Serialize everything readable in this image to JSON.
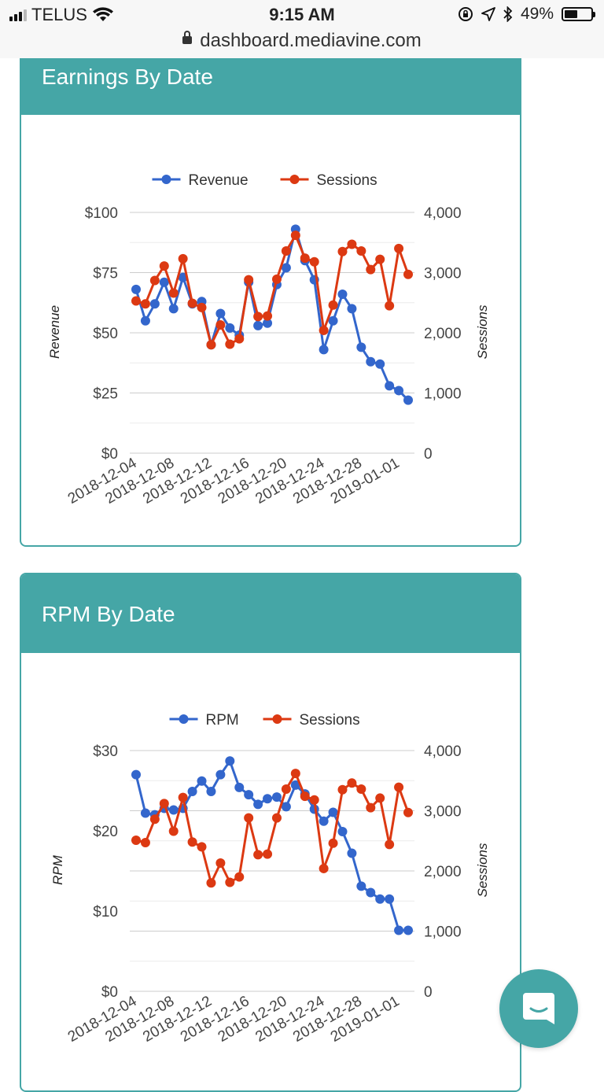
{
  "status_bar": {
    "carrier": "TELUS",
    "time": "9:15 AM",
    "battery": "49%",
    "battery_level": 0.49,
    "url": "dashboard.mediavine.com"
  },
  "colors": {
    "teal": "#45a6a6",
    "revenue": "#3366cc",
    "sessions": "#dc3912"
  },
  "icons": [
    "signal-icon",
    "wifi-icon",
    "orientation-lock-icon",
    "location-icon",
    "bluetooth-icon",
    "battery-icon",
    "lock-icon",
    "chat-icon"
  ],
  "cards": [
    {
      "title": "Earnings By Date"
    },
    {
      "title": "RPM By Date"
    }
  ],
  "chart_data": [
    {
      "type": "line",
      "title": "Earnings By Date",
      "dates": [
        "2018-12-04",
        "2018-12-05",
        "2018-12-06",
        "2018-12-07",
        "2018-12-08",
        "2018-12-09",
        "2018-12-10",
        "2018-12-11",
        "2018-12-12",
        "2018-12-13",
        "2018-12-14",
        "2018-12-15",
        "2018-12-16",
        "2018-12-17",
        "2018-12-18",
        "2018-12-19",
        "2018-12-20",
        "2018-12-21",
        "2018-12-22",
        "2018-12-23",
        "2018-12-24",
        "2018-12-25",
        "2018-12-26",
        "2018-12-27",
        "2018-12-28",
        "2018-12-29",
        "2018-12-30",
        "2018-12-31",
        "2019-01-01",
        "2019-01-02"
      ],
      "x_tick_labels": [
        "2018-12-04",
        "2018-12-08",
        "2018-12-12",
        "2018-12-16",
        "2018-12-20",
        "2018-12-24",
        "2018-12-28",
        "2019-01-01"
      ],
      "legend": [
        "Revenue",
        "Sessions"
      ],
      "left_axis": {
        "label": "Revenue",
        "ticks": [
          "$0",
          "$25",
          "$50",
          "$75",
          "$100"
        ],
        "range": [
          0,
          100
        ]
      },
      "right_axis": {
        "label": "Sessions",
        "ticks": [
          "0",
          "1,000",
          "2,000",
          "3,000",
          "4,000"
        ],
        "range": [
          0,
          4000
        ]
      },
      "series": [
        {
          "name": "Revenue",
          "axis": "left",
          "values": [
            68,
            55,
            62,
            71,
            60,
            73,
            62,
            63,
            45,
            58,
            52,
            49,
            71,
            53,
            54,
            70,
            77,
            93,
            80,
            72,
            43,
            55,
            66,
            60,
            44,
            38,
            37,
            28,
            26,
            22
          ]
        },
        {
          "name": "Sessions",
          "axis": "right",
          "values": [
            2530,
            2480,
            2870,
            3110,
            2660,
            3230,
            2490,
            2420,
            1800,
            2130,
            1810,
            1900,
            2880,
            2270,
            2280,
            2890,
            3360,
            3620,
            3240,
            3180,
            2040,
            2460,
            3350,
            3470,
            3360,
            3050,
            3220,
            2450,
            3400,
            2970
          ]
        }
      ]
    },
    {
      "type": "line",
      "title": "RPM By Date",
      "dates": [
        "2018-12-04",
        "2018-12-05",
        "2018-12-06",
        "2018-12-07",
        "2018-12-08",
        "2018-12-09",
        "2018-12-10",
        "2018-12-11",
        "2018-12-12",
        "2018-12-13",
        "2018-12-14",
        "2018-12-15",
        "2018-12-16",
        "2018-12-17",
        "2018-12-18",
        "2018-12-19",
        "2018-12-20",
        "2018-12-21",
        "2018-12-22",
        "2018-12-23",
        "2018-12-24",
        "2018-12-25",
        "2018-12-26",
        "2018-12-27",
        "2018-12-28",
        "2018-12-29",
        "2018-12-30",
        "2018-12-31",
        "2019-01-01",
        "2019-01-02"
      ],
      "x_tick_labels": [
        "2018-12-04",
        "2018-12-08",
        "2018-12-12",
        "2018-12-16",
        "2018-12-20",
        "2018-12-24",
        "2018-12-28",
        "2019-01-01"
      ],
      "legend": [
        "RPM",
        "Sessions"
      ],
      "left_axis": {
        "label": "RPM",
        "ticks": [
          "$0",
          "$10",
          "$20",
          "$30"
        ],
        "range": [
          0,
          30
        ]
      },
      "right_axis": {
        "label": "Sessions",
        "ticks": [
          "0",
          "1,000",
          "2,000",
          "3,000",
          "4,000"
        ],
        "range": [
          0,
          4000
        ]
      },
      "series": [
        {
          "name": "RPM",
          "axis": "left",
          "values": [
            27.0,
            22.2,
            22.0,
            22.8,
            22.6,
            22.8,
            24.9,
            26.2,
            24.9,
            27.0,
            28.7,
            25.4,
            24.5,
            23.3,
            24.0,
            24.2,
            23.0,
            25.7,
            24.6,
            22.7,
            21.2,
            22.3,
            19.9,
            17.2,
            13.1,
            12.3,
            11.5,
            11.5,
            7.6,
            7.6
          ]
        },
        {
          "name": "Sessions",
          "axis": "right",
          "values": [
            2510,
            2470,
            2860,
            3120,
            2660,
            3220,
            2480,
            2400,
            1800,
            2130,
            1810,
            1900,
            2880,
            2270,
            2280,
            2880,
            3360,
            3620,
            3240,
            3180,
            2040,
            2460,
            3350,
            3460,
            3360,
            3050,
            3210,
            2440,
            3390,
            2970
          ]
        }
      ]
    }
  ]
}
